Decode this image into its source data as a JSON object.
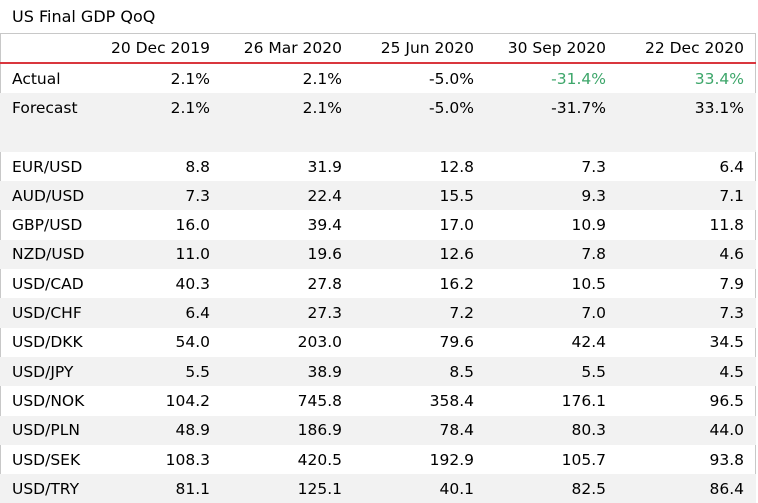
{
  "title": "US Final GDP QoQ",
  "colors": {
    "header_rule": "#d9363e",
    "positive": "#3da66a",
    "row_shade": "#f2f2f2"
  },
  "columns": [
    "20 Dec 2019",
    "26 Mar 2020",
    "25 Jun 2020",
    "30 Sep 2020",
    "22 Dec 2020"
  ],
  "gdp_rows": [
    {
      "label": "Actual",
      "values": [
        "2.1%",
        "2.1%",
        "-5.0%",
        "-31.4%",
        "33.4%"
      ],
      "green": [
        false,
        false,
        false,
        true,
        true
      ]
    },
    {
      "label": "Forecast",
      "values": [
        "2.1%",
        "2.1%",
        "-5.0%",
        "-31.7%",
        "33.1%"
      ],
      "green": [
        false,
        false,
        false,
        false,
        false
      ]
    }
  ],
  "fx_rows": [
    {
      "label": "EUR/USD",
      "values": [
        "8.8",
        "31.9",
        "12.8",
        "7.3",
        "6.4"
      ]
    },
    {
      "label": "AUD/USD",
      "values": [
        "7.3",
        "22.4",
        "15.5",
        "9.3",
        "7.1"
      ]
    },
    {
      "label": "GBP/USD",
      "values": [
        "16.0",
        "39.4",
        "17.0",
        "10.9",
        "11.8"
      ]
    },
    {
      "label": "NZD/USD",
      "values": [
        "11.0",
        "19.6",
        "12.6",
        "7.8",
        "4.6"
      ]
    },
    {
      "label": "USD/CAD",
      "values": [
        "40.3",
        "27.8",
        "16.2",
        "10.5",
        "7.9"
      ]
    },
    {
      "label": "USD/CHF",
      "values": [
        "6.4",
        "27.3",
        "7.2",
        "7.0",
        "7.3"
      ]
    },
    {
      "label": "USD/DKK",
      "values": [
        "54.0",
        "203.0",
        "79.6",
        "42.4",
        "34.5"
      ]
    },
    {
      "label": "USD/JPY",
      "values": [
        "5.5",
        "38.9",
        "8.5",
        "5.5",
        "4.5"
      ]
    },
    {
      "label": "USD/NOK",
      "values": [
        "104.2",
        "745.8",
        "358.4",
        "176.1",
        "96.5"
      ]
    },
    {
      "label": "USD/PLN",
      "values": [
        "48.9",
        "186.9",
        "78.4",
        "80.3",
        "44.0"
      ]
    },
    {
      "label": "USD/SEK",
      "values": [
        "108.3",
        "420.5",
        "192.9",
        "105.7",
        "93.8"
      ]
    },
    {
      "label": "USD/TRY",
      "values": [
        "81.1",
        "125.1",
        "40.1",
        "82.5",
        "86.4"
      ]
    }
  ]
}
